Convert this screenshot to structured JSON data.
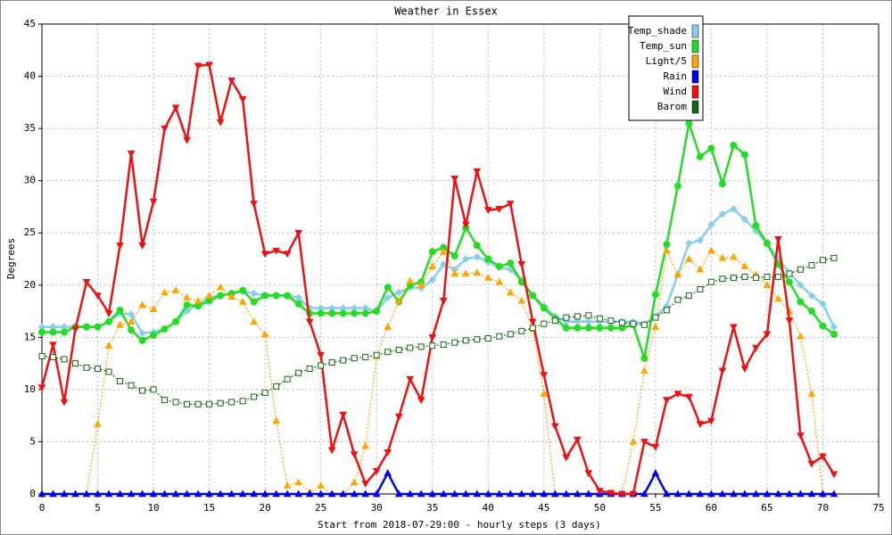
{
  "chart_data": {
    "type": "line",
    "title": "Weather in Essex",
    "x_label": "Start from 2018-07-29:00 - hourly steps (3 days)",
    "y_label": "Degrees",
    "x": [
      0,
      1,
      2,
      3,
      4,
      5,
      6,
      7,
      8,
      9,
      10,
      11,
      12,
      13,
      14,
      15,
      16,
      17,
      18,
      19,
      20,
      21,
      22,
      23,
      24,
      25,
      26,
      27,
      28,
      29,
      30,
      31,
      32,
      33,
      34,
      35,
      36,
      37,
      38,
      39,
      40,
      41,
      42,
      43,
      44,
      45,
      46,
      47,
      48,
      49,
      50,
      51,
      52,
      53,
      54,
      55,
      56,
      57,
      58,
      59,
      60,
      61,
      62,
      63,
      64,
      65,
      66,
      67,
      68,
      69,
      70,
      71
    ],
    "xlim": [
      0,
      75
    ],
    "xticks": [
      0,
      5,
      10,
      15,
      20,
      25,
      30,
      35,
      40,
      45,
      50,
      55,
      60,
      65,
      70,
      75
    ],
    "ylim": [
      0,
      45
    ],
    "yticks": [
      0,
      5,
      10,
      15,
      20,
      25,
      30,
      35,
      40,
      45
    ],
    "grid": true,
    "legend": "top-right",
    "series": [
      {
        "name": "Temp_shade",
        "color": "#87ceeb",
        "style": "solid",
        "marker": "diamond",
        "values": [
          16,
          16,
          16,
          16,
          16,
          16,
          16.5,
          17.3,
          17.2,
          15.4,
          15.5,
          15.8,
          16.5,
          17.5,
          18.2,
          18.8,
          19,
          19.2,
          19.4,
          19.2,
          19,
          19,
          19,
          18.8,
          17.8,
          17.8,
          17.8,
          17.8,
          17.8,
          17.8,
          17.5,
          18.8,
          19.3,
          19.8,
          19.7,
          20.5,
          22,
          21.5,
          22.5,
          22.7,
          22.2,
          21.7,
          21.5,
          20.5,
          19,
          18,
          17,
          16.5,
          16.5,
          16.5,
          16.5,
          16.5,
          16.5,
          16.5,
          16.3,
          17,
          18,
          21,
          24,
          24.3,
          25.8,
          26.8,
          27.3,
          26.3,
          25.2,
          24,
          22.5,
          21.2,
          20,
          19,
          18.2,
          16
        ]
      },
      {
        "name": "Temp_sun",
        "color": "#22dd22",
        "style": "solid",
        "marker": "circle",
        "values": [
          15.5,
          15.5,
          15.5,
          16,
          16,
          16,
          16.5,
          17.6,
          15.7,
          14.7,
          15.2,
          15.8,
          16.5,
          18.1,
          18,
          18.5,
          19,
          19.2,
          19.5,
          18.4,
          19,
          19,
          19,
          18.2,
          17.3,
          17.3,
          17.3,
          17.3,
          17.3,
          17.3,
          17.5,
          19.8,
          18.4,
          20,
          20.3,
          23.2,
          23.6,
          22.8,
          25.5,
          23.8,
          22.5,
          21.8,
          22.1,
          20.3,
          19,
          17.8,
          16.8,
          15.9,
          15.9,
          15.9,
          15.9,
          15.9,
          15.9,
          16.2,
          13,
          19.1,
          23.9,
          29.5,
          35.5,
          32.3,
          33.1,
          29.7,
          33.4,
          32.5,
          25.7,
          24,
          22,
          20.3,
          18.4,
          17.5,
          16.1,
          15.3
        ]
      },
      {
        "name": "Light/5",
        "color": "#ffa500",
        "style": "dotted",
        "marker": "triangle-up",
        "values": [
          0,
          0,
          0,
          0,
          0,
          6.7,
          14.2,
          16.2,
          16.5,
          18.1,
          17.7,
          19.3,
          19.5,
          18.8,
          18.5,
          19,
          19.8,
          18.9,
          18.4,
          16.5,
          15.3,
          7,
          0.8,
          1.1,
          0.2,
          0.8,
          0,
          0,
          1.1,
          4.6,
          13.2,
          16,
          18.5,
          20.4,
          20,
          21.8,
          23.2,
          21.1,
          21.1,
          21.2,
          20.7,
          20.3,
          19.3,
          18.5,
          15.8,
          9.6,
          0,
          0,
          0,
          0,
          0,
          0,
          0,
          5,
          11.8,
          16,
          23.3,
          21,
          22.5,
          21.5,
          23.3,
          22.6,
          22.7,
          21.8,
          21,
          20,
          18.7,
          17.5,
          15.1,
          9.6,
          0,
          0
        ]
      },
      {
        "name": "Rain",
        "color": "#0000ee",
        "style": "solid",
        "marker": "triangle-up",
        "values": [
          0,
          0,
          0,
          0,
          0,
          0,
          0,
          0,
          0,
          0,
          0,
          0,
          0,
          0,
          0,
          0,
          0,
          0,
          0,
          0,
          0,
          0,
          0,
          0,
          0,
          0,
          0,
          0,
          0,
          0,
          0,
          2,
          0,
          0,
          0,
          0,
          0,
          0,
          0,
          0,
          0,
          0,
          0,
          0,
          0,
          0,
          0,
          0,
          0,
          0,
          0,
          0,
          0,
          0,
          0,
          2,
          0,
          0,
          0,
          0,
          0,
          0,
          0,
          0,
          0,
          0,
          0,
          0,
          0,
          0,
          0,
          0
        ]
      },
      {
        "name": "Wind",
        "color": "#ee1111",
        "style": "solid",
        "marker": "triangle-down",
        "values": [
          10.2,
          14.3,
          8.8,
          15.8,
          20.3,
          19,
          17.3,
          23.8,
          32.6,
          23.8,
          28,
          35,
          37,
          33.9,
          41,
          41.1,
          35.6,
          39.6,
          37.8,
          27.8,
          23,
          23.3,
          23,
          25,
          16.5,
          13.3,
          4.2,
          7.6,
          3.8,
          1,
          2.2,
          4,
          7.4,
          11,
          9,
          15,
          18.5,
          30.2,
          25.8,
          30.9,
          27.2,
          27.3,
          27.8,
          22,
          16.5,
          11.4,
          6.5,
          3.5,
          5.2,
          2,
          0.3,
          0.1,
          0,
          0,
          5,
          4.5,
          9,
          9.6,
          9.3,
          6.7,
          7,
          11.8,
          16,
          12,
          14,
          15.3,
          24.4,
          16.6,
          5.6,
          2.9,
          3.6,
          1.9
        ]
      },
      {
        "name": "Barom",
        "color": "#116611",
        "style": "dotted",
        "marker": "square-open",
        "values": [
          13.2,
          13.1,
          12.9,
          12.5,
          12.1,
          12,
          11.7,
          10.8,
          10.4,
          9.9,
          10,
          9,
          8.8,
          8.6,
          8.6,
          8.6,
          8.7,
          8.8,
          8.9,
          9.3,
          9.7,
          10.3,
          11,
          11.6,
          12,
          12.3,
          12.6,
          12.8,
          13,
          13.1,
          13.3,
          13.6,
          13.8,
          14,
          14.1,
          14.2,
          14.3,
          14.5,
          14.7,
          14.8,
          14.9,
          15.1,
          15.3,
          15.6,
          15.9,
          16.3,
          16.6,
          16.9,
          17,
          17.1,
          16.8,
          16.6,
          16.4,
          16.3,
          16.2,
          16.9,
          17.6,
          18.6,
          19,
          19.6,
          20.3,
          20.6,
          20.7,
          20.8,
          20.7,
          20.8,
          20.8,
          21.1,
          21.5,
          21.9,
          22.4,
          22.6
        ]
      }
    ]
  }
}
